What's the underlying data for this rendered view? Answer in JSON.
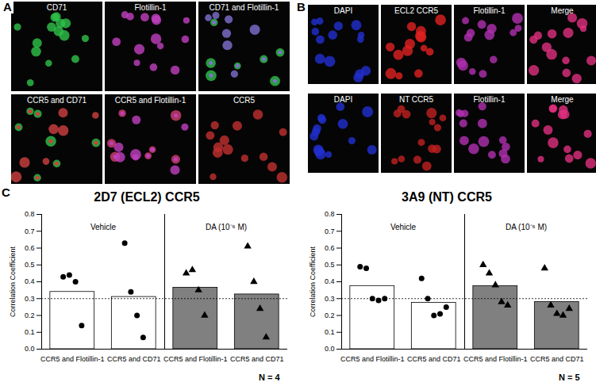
{
  "images": {
    "A": {
      "label": "A",
      "tiles": [
        "CD71",
        "Flotillin-1",
        "CD71 and Flotillin-1",
        "CCR5 and CD71",
        "CCR5 and Flotillin-1",
        "CCR5"
      ]
    },
    "B": {
      "label": "B",
      "tiles": [
        "DAPI",
        "ECL2 CCR5",
        "Flotillin-1",
        "Merge",
        "DAPI",
        "NT CCR5",
        "Flotillin-1",
        "Merge"
      ]
    }
  },
  "chart_panel_label": "C",
  "chart_data": [
    {
      "type": "bar",
      "title": "2D7 (ECL2) CCR5",
      "y_label": "Correlation Coefficient",
      "categories": [
        "CCR5 and Flotillin-1",
        "CCR5 and CD71"
      ],
      "series": [
        {
          "name": "Vehicle",
          "color": "#ffffff",
          "marker": "circle",
          "values": [
            0.34,
            0.31
          ],
          "points": [
            [
              0.43,
              0.44,
              0.4,
              0.14
            ],
            [
              0.63,
              0.34,
              0.2,
              0.07
            ]
          ]
        },
        {
          "name": "DA (10⁻⁶ M)",
          "color": "#808080",
          "marker": "triangle",
          "values": [
            0.365,
            0.325
          ],
          "points": [
            [
              0.45,
              0.47,
              0.35,
              0.2
            ],
            [
              0.61,
              0.4,
              0.24,
              0.07
            ]
          ]
        }
      ],
      "reference_line": 0.3,
      "ylim": [
        0,
        0.8
      ],
      "yticks": [
        {
          "value": 0,
          "label": "0.0"
        },
        0.1,
        0.2,
        0.3,
        0.4,
        0.5,
        0.6,
        0.7,
        0.8
      ],
      "annotation": "N = 4"
    },
    {
      "type": "bar",
      "title": "3A9 (NT) CCR5",
      "y_label": "Correlation Coefficient",
      "categories": [
        "CCR5 and Flotillin-1",
        "CCR5 and CD71"
      ],
      "series": [
        {
          "name": "Vehicle",
          "color": "#ffffff",
          "marker": "circle",
          "values": [
            0.375,
            0.275
          ],
          "points": [
            [
              0.49,
              0.48,
              0.3,
              0.29,
              0.3
            ],
            [
              0.42,
              0.3,
              0.2,
              0.21,
              0.25
            ]
          ]
        },
        {
          "name": "DA (10⁻⁶ M)",
          "color": "#808080",
          "marker": "triangle",
          "values": [
            0.375,
            0.28
          ],
          "points": [
            [
              0.5,
              0.45,
              0.38,
              0.28,
              0.26
            ],
            [
              0.48,
              0.26,
              0.21,
              0.2,
              0.24
            ]
          ]
        }
      ],
      "reference_line": 0.3,
      "ylim": [
        0,
        0.8
      ],
      "yticks": [
        {
          "value": 0,
          "label": "0.0"
        },
        0.1,
        0.2,
        0.3,
        0.4,
        0.5,
        0.6,
        0.7,
        0.8
      ],
      "annotation": "N = 5"
    }
  ]
}
